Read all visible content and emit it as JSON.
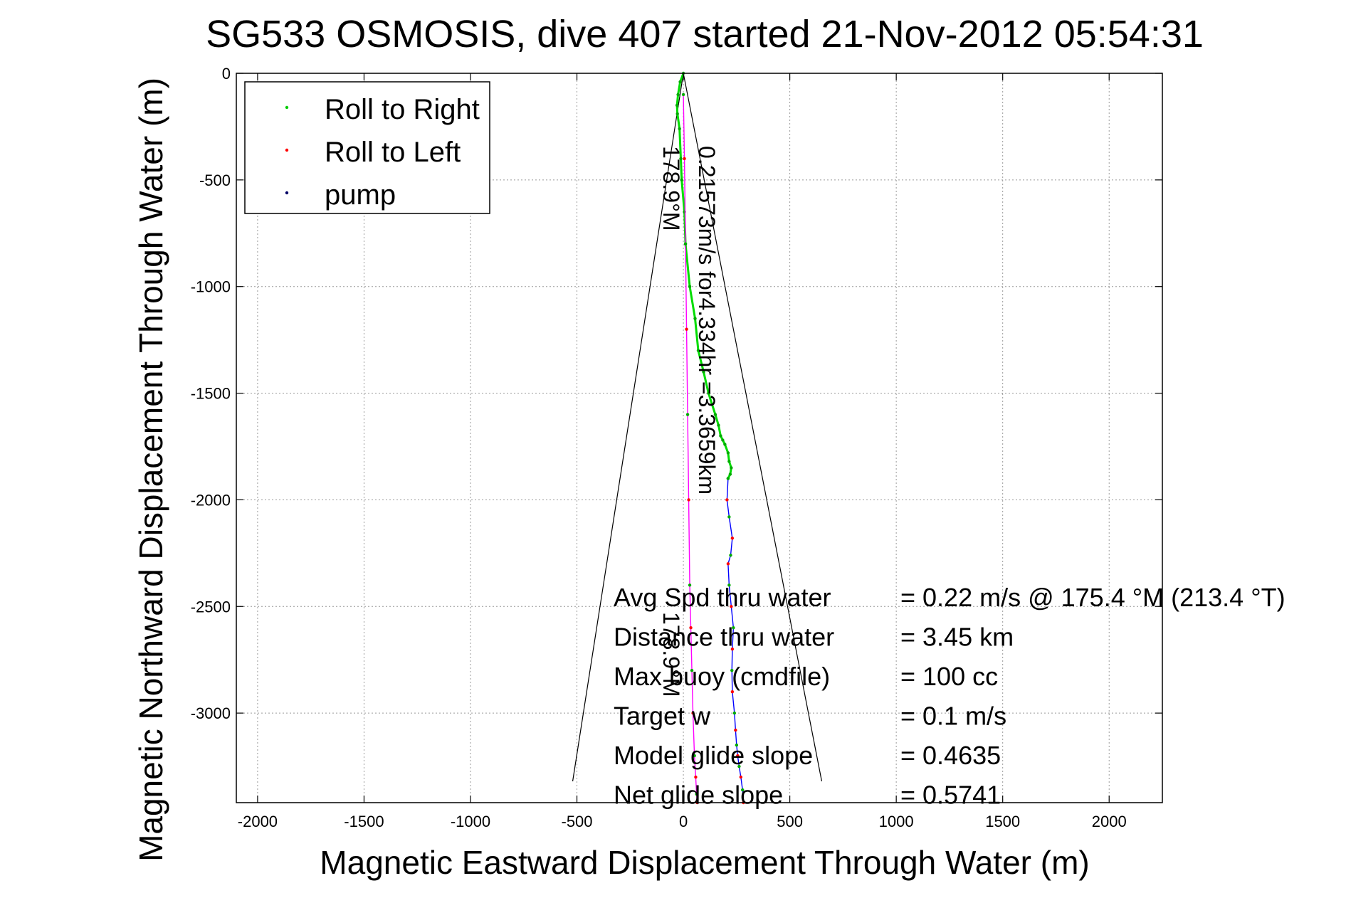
{
  "chart_data": {
    "type": "line",
    "title": "SG533 OSMOSIS, dive 407 started 21-Nov-2012 05:54:31",
    "xlabel": "Magnetic Eastward Displacement Through Water (m)",
    "ylabel": "Magnetic Northward Displacement Through Water (m)",
    "xlim": [
      -2100,
      2250
    ],
    "ylim": [
      -3420,
      0
    ],
    "xticks": [
      -2000,
      -1500,
      -1000,
      -500,
      0,
      500,
      1000,
      1500,
      2000
    ],
    "xtick_labels": [
      "-2000",
      "-1500",
      "-1000",
      "-500",
      "0",
      "500",
      "1000",
      "1500",
      "2000"
    ],
    "yticks": [
      0,
      -500,
      -1000,
      -1500,
      -2000,
      -2500,
      -3000
    ],
    "ytick_labels": [
      "0",
      "-500",
      "-1000",
      "-1500",
      "-2000",
      "-2500",
      "-3000"
    ],
    "grid": true,
    "legend": {
      "placement": "top-left",
      "entries": [
        {
          "label": "Roll to Right",
          "color": "#00cc00"
        },
        {
          "label": "Roll to Left",
          "color": "#ff0000"
        },
        {
          "label": "pump",
          "color": "#000066"
        }
      ]
    },
    "series": [
      {
        "color": "#00dd00",
        "x": [
          0,
          -15,
          -25,
          -30,
          -28,
          -18,
          -12,
          -8,
          5,
          10,
          30,
          55,
          70,
          95,
          118,
          150,
          165,
          175,
          185,
          195,
          210,
          215,
          225,
          220,
          210
        ],
        "y": [
          0,
          -40,
          -100,
          -150,
          -190,
          -260,
          -400,
          -500,
          -650,
          -800,
          -1000,
          -1150,
          -1300,
          -1400,
          -1500,
          -1600,
          -1650,
          -1700,
          -1720,
          -1740,
          -1780,
          -1820,
          -1850,
          -1880,
          -1900
        ]
      },
      {
        "color": "#0000ff",
        "x": [
          210,
          205,
          215,
          230,
          222,
          210,
          215,
          225,
          235,
          230,
          228,
          230,
          240,
          245,
          250,
          255,
          262,
          270,
          278,
          282
        ],
        "y": [
          -1900,
          -2000,
          -2080,
          -2180,
          -2260,
          -2300,
          -2400,
          -2500,
          -2600,
          -2700,
          -2800,
          -2900,
          -3000,
          -3080,
          -3150,
          -3200,
          -3250,
          -3300,
          -3360,
          -3420
        ]
      },
      {
        "color": "#ff00ff",
        "x": [
          0,
          5,
          10,
          15,
          20,
          25,
          30,
          35,
          40,
          45,
          52,
          58,
          62,
          65
        ],
        "y": [
          -100,
          -400,
          -800,
          -1200,
          -1600,
          -2000,
          -2400,
          -2600,
          -2800,
          -3000,
          -3200,
          -3300,
          -3380,
          -3420
        ]
      }
    ],
    "wedge": {
      "apex": [
        0,
        0
      ],
      "left_end": [
        -520,
        -3320
      ],
      "right_end": [
        650,
        -3320
      ],
      "color": "#000000"
    },
    "rotated_labels": [
      {
        "text": "178.9°M"
      },
      {
        "text": "0.21573m/s for4.334hr =3.3659km"
      },
      {
        "text": "178.9°M"
      }
    ],
    "annotations": [
      {
        "label": "Avg Spd thru water",
        "value": "=  0.22 m/s @ 175.4 °M (213.4 °T)"
      },
      {
        "label": "Distance thru water",
        "value": "=  3.45 km"
      },
      {
        "label": "Max buoy (cmdfile)",
        "value": "= 100 cc"
      },
      {
        "label": "Target w",
        "value": "= 0.1 m/s"
      },
      {
        "label": "Model glide slope",
        "value": "= 0.4635"
      },
      {
        "label": "Net glide slope",
        "value": "= 0.5741"
      }
    ]
  }
}
